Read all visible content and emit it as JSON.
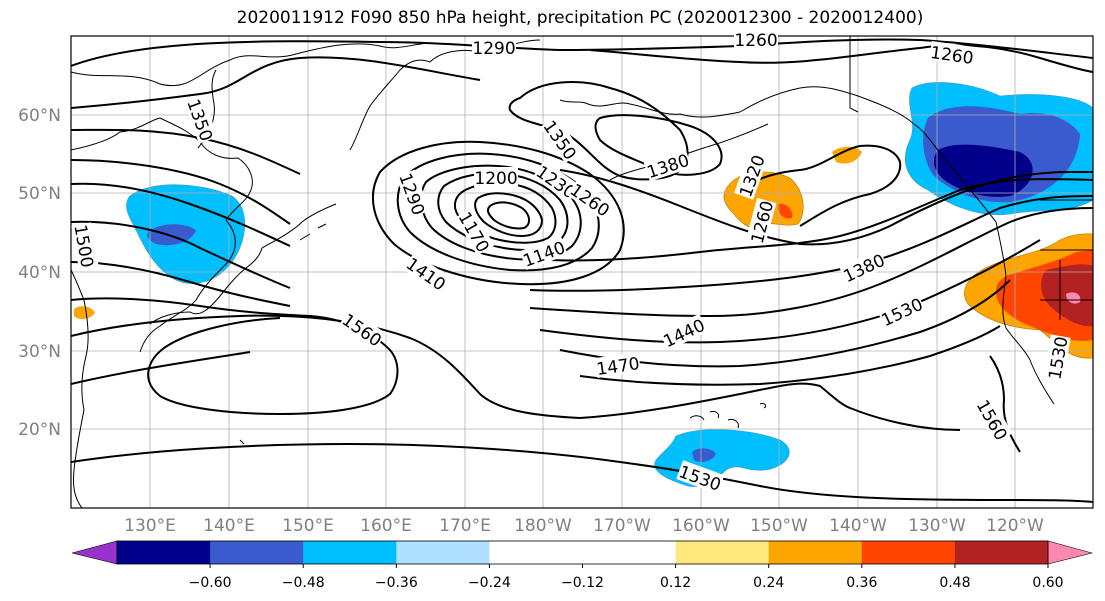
{
  "title": "2020011912 F090 850 hPa height, precipitation PC (2020012300 - 2020012400)",
  "map": {
    "lon_labels": [
      "130°E",
      "140°E",
      "150°E",
      "160°E",
      "170°E",
      "180°W",
      "170°W",
      "160°W",
      "150°W",
      "140°W",
      "130°W",
      "120°W"
    ],
    "lat_labels": [
      "60°N",
      "50°N",
      "40°N",
      "30°N",
      "20°N"
    ],
    "contour_labels": [
      "1290",
      "1260",
      "1260",
      "1350",
      "1350",
      "1380",
      "1320",
      "1260",
      "1200",
      "1230",
      "1260",
      "1290",
      "1170",
      "1140",
      "1410",
      "1380",
      "1500",
      "1560",
      "1440",
      "1470",
      "1530",
      "1560",
      "1530",
      "1530"
    ],
    "label_color": "#808080"
  },
  "colorbar": {
    "colors": [
      "#9932CC",
      "#00008B",
      "#3A5BCD",
      "#00BFFF",
      "#B0E0FF",
      "#FFFFFF",
      "#FFFFFF",
      "#FFE97F",
      "#FFA500",
      "#FF4500",
      "#B22222",
      "#FF88B0"
    ],
    "ticks": [
      "−0.60",
      "−0.48",
      "−0.36",
      "−0.24",
      "−0.12",
      "0.12",
      "0.24",
      "0.36",
      "0.48",
      "0.60"
    ]
  }
}
